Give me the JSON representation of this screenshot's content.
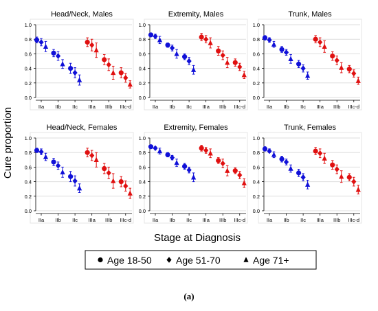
{
  "chart_data": {
    "type": "scatter",
    "ylabel": "Cure proportion",
    "xlabel": "Stage at Diagnosis",
    "ylim": [
      0,
      1
    ],
    "yticks": [
      "0.0",
      "0.2",
      "0.4",
      "0.6",
      "0.8",
      "1.0"
    ],
    "categories": [
      "IIa",
      "IIb",
      "IIc",
      "IIIa",
      "IIIb",
      "IIIc-d"
    ],
    "grid": true,
    "legend": {
      "placement": "bottom",
      "entries": [
        {
          "label": "Age 18-50",
          "marker": "circle"
        },
        {
          "label": "Age 51-70",
          "marker": "diamond"
        },
        {
          "label": "Age 71+",
          "marker": "triangle"
        }
      ]
    },
    "colors": {
      "stage_ii": "#1010d8",
      "stage_iii": "#e01010",
      "grid": "#dedede",
      "axis": "#000000"
    },
    "panels": [
      {
        "title": "Head/Neck, Males",
        "values": [
          [
            0.79,
            0.76,
            0.7
          ],
          [
            0.61,
            0.57,
            0.46
          ],
          [
            0.4,
            0.34,
            0.24
          ],
          [
            0.76,
            0.72,
            0.65
          ],
          [
            0.52,
            0.45,
            0.34
          ],
          [
            0.34,
            0.27,
            0.18
          ]
        ],
        "lower": [
          [
            0.75,
            0.71,
            0.63
          ],
          [
            0.56,
            0.51,
            0.4
          ],
          [
            0.33,
            0.27,
            0.17
          ],
          [
            0.7,
            0.64,
            0.55
          ],
          [
            0.45,
            0.37,
            0.25
          ],
          [
            0.27,
            0.21,
            0.13
          ]
        ],
        "upper": [
          [
            0.83,
            0.81,
            0.77
          ],
          [
            0.66,
            0.63,
            0.52
          ],
          [
            0.47,
            0.41,
            0.31
          ],
          [
            0.82,
            0.8,
            0.75
          ],
          [
            0.59,
            0.53,
            0.43
          ],
          [
            0.41,
            0.33,
            0.23
          ]
        ]
      },
      {
        "title": "Extremity, Males",
        "values": [
          [
            0.86,
            0.84,
            0.79
          ],
          [
            0.72,
            0.68,
            0.6
          ],
          [
            0.56,
            0.5,
            0.38
          ],
          [
            0.83,
            0.8,
            0.75
          ],
          [
            0.64,
            0.58,
            0.48
          ],
          [
            0.48,
            0.42,
            0.31
          ]
        ],
        "lower": [
          [
            0.84,
            0.81,
            0.74
          ],
          [
            0.69,
            0.64,
            0.54
          ],
          [
            0.52,
            0.45,
            0.32
          ],
          [
            0.78,
            0.75,
            0.68
          ],
          [
            0.58,
            0.52,
            0.41
          ],
          [
            0.43,
            0.37,
            0.26
          ]
        ],
        "upper": [
          [
            0.88,
            0.87,
            0.84
          ],
          [
            0.75,
            0.72,
            0.66
          ],
          [
            0.6,
            0.55,
            0.44
          ],
          [
            0.88,
            0.85,
            0.82
          ],
          [
            0.7,
            0.64,
            0.55
          ],
          [
            0.53,
            0.47,
            0.36
          ]
        ]
      },
      {
        "title": "Trunk, Males",
        "values": [
          [
            0.82,
            0.79,
            0.73
          ],
          [
            0.66,
            0.62,
            0.53
          ],
          [
            0.46,
            0.4,
            0.3
          ],
          [
            0.8,
            0.76,
            0.7
          ],
          [
            0.57,
            0.51,
            0.41
          ],
          [
            0.39,
            0.33,
            0.23
          ]
        ],
        "lower": [
          [
            0.79,
            0.76,
            0.69
          ],
          [
            0.62,
            0.58,
            0.47
          ],
          [
            0.41,
            0.35,
            0.25
          ],
          [
            0.75,
            0.7,
            0.62
          ],
          [
            0.51,
            0.45,
            0.34
          ],
          [
            0.34,
            0.28,
            0.18
          ]
        ],
        "upper": [
          [
            0.85,
            0.82,
            0.77
          ],
          [
            0.7,
            0.66,
            0.59
          ],
          [
            0.51,
            0.45,
            0.35
          ],
          [
            0.85,
            0.82,
            0.78
          ],
          [
            0.63,
            0.57,
            0.48
          ],
          [
            0.44,
            0.38,
            0.28
          ]
        ]
      },
      {
        "title": "Head/Neck, Females",
        "values": [
          [
            0.83,
            0.81,
            0.74
          ],
          [
            0.67,
            0.62,
            0.53
          ],
          [
            0.47,
            0.41,
            0.31
          ],
          [
            0.8,
            0.76,
            0.7
          ],
          [
            0.58,
            0.52,
            0.41
          ],
          [
            0.4,
            0.34,
            0.24
          ]
        ],
        "lower": [
          [
            0.8,
            0.77,
            0.69
          ],
          [
            0.62,
            0.57,
            0.46
          ],
          [
            0.4,
            0.34,
            0.25
          ],
          [
            0.74,
            0.69,
            0.6
          ],
          [
            0.51,
            0.44,
            0.31
          ],
          [
            0.33,
            0.27,
            0.17
          ]
        ],
        "upper": [
          [
            0.86,
            0.85,
            0.79
          ],
          [
            0.72,
            0.67,
            0.6
          ],
          [
            0.54,
            0.48,
            0.37
          ],
          [
            0.86,
            0.83,
            0.8
          ],
          [
            0.65,
            0.6,
            0.51
          ],
          [
            0.47,
            0.41,
            0.31
          ]
        ]
      },
      {
        "title": "Extremity, Females",
        "values": [
          [
            0.88,
            0.86,
            0.82
          ],
          [
            0.77,
            0.73,
            0.66
          ],
          [
            0.61,
            0.56,
            0.46
          ],
          [
            0.86,
            0.83,
            0.79
          ],
          [
            0.69,
            0.65,
            0.55
          ],
          [
            0.55,
            0.49,
            0.38
          ]
        ],
        "lower": [
          [
            0.86,
            0.84,
            0.78
          ],
          [
            0.74,
            0.7,
            0.61
          ],
          [
            0.57,
            0.52,
            0.4
          ],
          [
            0.82,
            0.79,
            0.73
          ],
          [
            0.65,
            0.59,
            0.48
          ],
          [
            0.51,
            0.44,
            0.32
          ]
        ],
        "upper": [
          [
            0.9,
            0.88,
            0.86
          ],
          [
            0.8,
            0.76,
            0.71
          ],
          [
            0.65,
            0.6,
            0.52
          ],
          [
            0.9,
            0.87,
            0.85
          ],
          [
            0.73,
            0.71,
            0.62
          ],
          [
            0.59,
            0.54,
            0.44
          ]
        ]
      },
      {
        "title": "Trunk, Females",
        "values": [
          [
            0.85,
            0.82,
            0.77
          ],
          [
            0.71,
            0.67,
            0.58
          ],
          [
            0.52,
            0.46,
            0.36
          ],
          [
            0.82,
            0.79,
            0.72
          ],
          [
            0.63,
            0.57,
            0.47
          ],
          [
            0.46,
            0.4,
            0.29
          ]
        ],
        "lower": [
          [
            0.82,
            0.8,
            0.73
          ],
          [
            0.67,
            0.63,
            0.53
          ],
          [
            0.47,
            0.41,
            0.3
          ],
          [
            0.77,
            0.73,
            0.65
          ],
          [
            0.57,
            0.51,
            0.39
          ],
          [
            0.41,
            0.34,
            0.23
          ]
        ],
        "upper": [
          [
            0.88,
            0.85,
            0.81
          ],
          [
            0.75,
            0.71,
            0.63
          ],
          [
            0.57,
            0.51,
            0.42
          ],
          [
            0.87,
            0.85,
            0.79
          ],
          [
            0.69,
            0.63,
            0.55
          ],
          [
            0.51,
            0.46,
            0.35
          ]
        ]
      }
    ]
  },
  "caption": {
    "label": "(a)"
  }
}
